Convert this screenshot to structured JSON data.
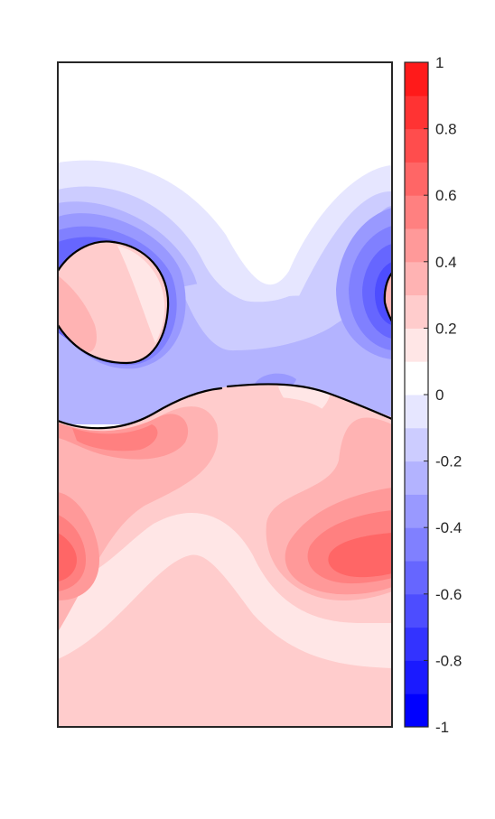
{
  "chart_data": {
    "type": "heatmap",
    "title": "",
    "xlabel": "",
    "ylabel": "",
    "x_ticks_shown": false,
    "y_ticks_shown": false,
    "colormap": "blue-white-red diverging",
    "color_limits": [
      -1,
      1
    ],
    "levels": [
      -1,
      -0.9,
      -0.8,
      -0.7,
      -0.6,
      -0.5,
      -0.4,
      -0.3,
      -0.2,
      -0.1,
      0,
      0.1,
      0.2,
      0.3,
      0.4,
      0.5,
      0.6,
      0.7,
      0.8,
      0.9,
      1
    ],
    "level_colors": [
      "#0000ff",
      "#1a1aff",
      "#3333ff",
      "#4d4dff",
      "#6666ff",
      "#8080ff",
      "#9999ff",
      "#b3b3ff",
      "#ccccff",
      "#e6e6ff",
      "#ffffff",
      "#ffe6e6",
      "#ffcccc",
      "#ffb3b3",
      "#ff9999",
      "#ff8080",
      "#ff6666",
      "#ff4d4d",
      "#ff3333",
      "#ff1a1a"
    ],
    "colorbar": {
      "location": "right",
      "tick_values": [
        1,
        0.8,
        0.6,
        0.4,
        0.2,
        0,
        -0.2,
        -0.4,
        -0.6,
        -0.8,
        -1
      ],
      "tick_labels": [
        "1",
        "0.8",
        "0.6",
        "0.4",
        "0.2",
        "0",
        "-0.2",
        "-0.4",
        "-0.6",
        "-0.8",
        "-1"
      ]
    },
    "grid": false,
    "features": {
      "zero_contour": "black line separating negative (blue) upper band from positive (red) lower band",
      "inclusions": [
        "circular region at upper-left with positive values",
        "partial circular region at right edge with positive values"
      ],
      "frame_color": "#262626"
    }
  }
}
